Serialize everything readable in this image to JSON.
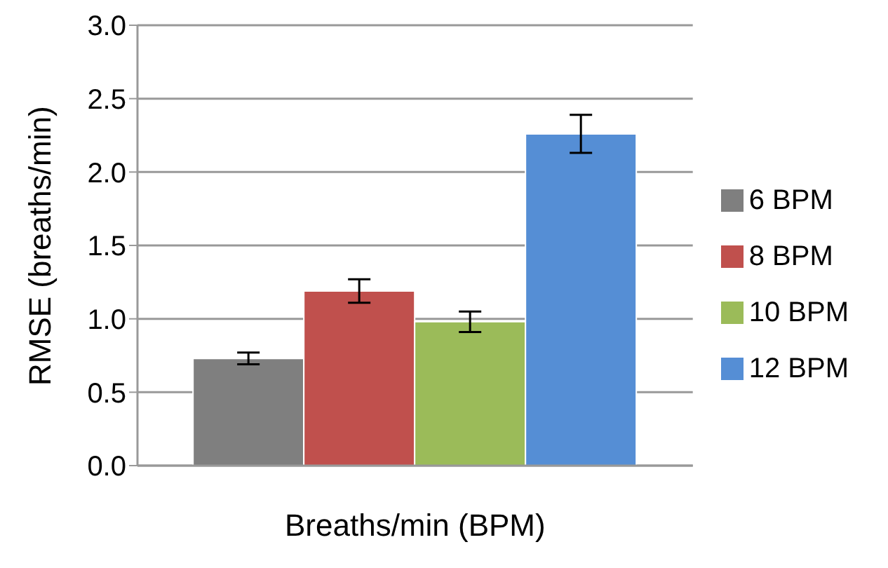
{
  "chart_data": {
    "type": "bar",
    "xlabel": "Breaths/min (BPM)",
    "ylabel": "RMSE (breaths/min)",
    "categories": [
      null
    ],
    "series": [
      {
        "name": "6 BPM",
        "color": "#7f7f7f",
        "values": [
          0.73
        ],
        "errors": [
          0.04
        ]
      },
      {
        "name": "8 BPM",
        "color": "#c0504d",
        "values": [
          1.19
        ],
        "errors": [
          0.08
        ]
      },
      {
        "name": "10 BPM",
        "color": "#9bbb59",
        "values": [
          0.98
        ],
        "errors": [
          0.07
        ]
      },
      {
        "name": "12 BPM",
        "color": "#558ed5",
        "values": [
          2.26
        ],
        "errors": [
          0.13
        ]
      }
    ],
    "ylim": [
      0,
      3.0
    ],
    "yticks": [
      {
        "value": 0,
        "label": "0.0"
      },
      {
        "value": 0.5,
        "label": "0.5"
      },
      {
        "value": 1,
        "label": "1.0"
      },
      {
        "value": 1.5,
        "label": "1.5"
      },
      {
        "value": 2,
        "label": "2.0"
      },
      {
        "value": 2.5,
        "label": "2.5"
      },
      {
        "value": 3,
        "label": "3.0"
      }
    ],
    "grid": "y",
    "legend": "right"
  }
}
